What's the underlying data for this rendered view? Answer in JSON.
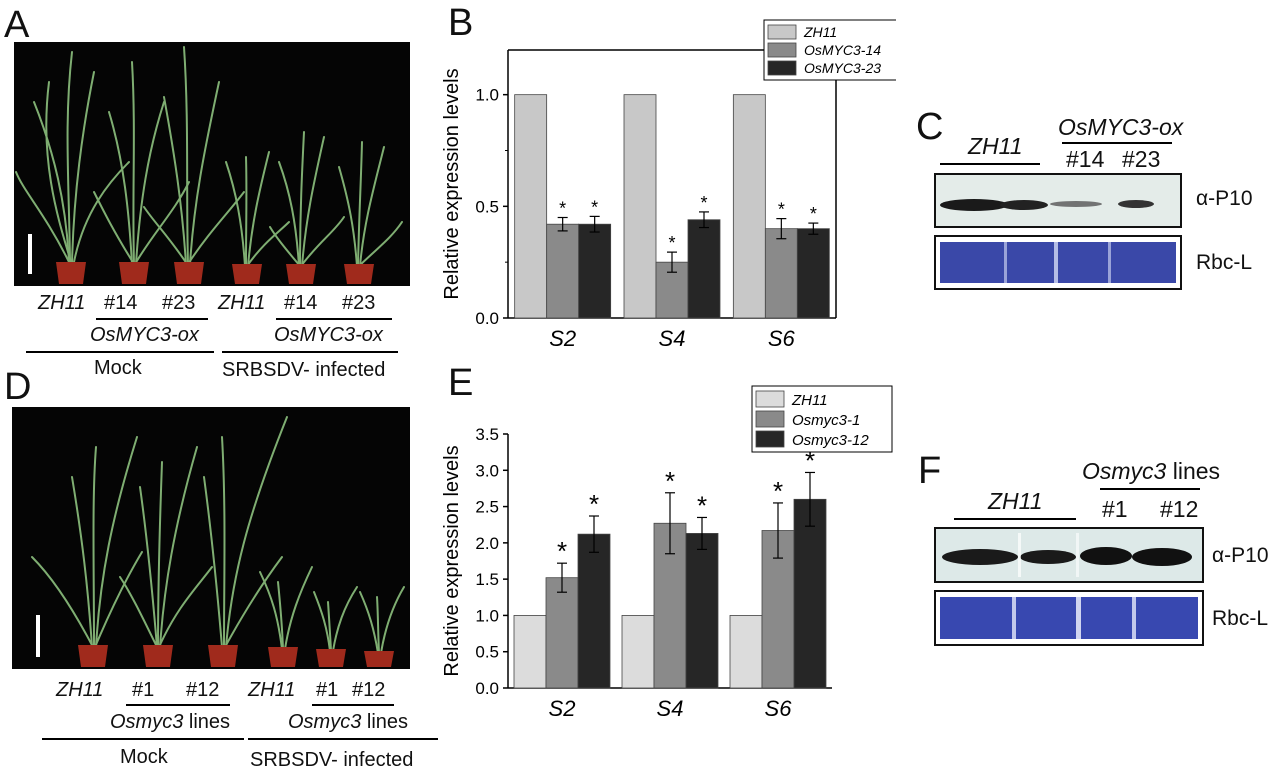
{
  "panels": {
    "a": {
      "letter": "A",
      "groups": [
        {
          "label": "ZH11",
          "lines": [
            "#14",
            "#23"
          ],
          "line_group_label": "OsMYC3-ox",
          "condition": "Mock"
        },
        {
          "label": "ZH11",
          "lines": [
            "#14",
            "#23"
          ],
          "line_group_label": "OsMYC3-ox",
          "condition": "SRBSDV- infected"
        }
      ]
    },
    "b": {
      "letter": "B"
    },
    "c": {
      "letter": "C",
      "header_left": "ZH11",
      "header_right": "OsMYC3-ox",
      "lane_labels": [
        "#14",
        "#23"
      ],
      "rows": [
        "α-P10",
        "Rbc-L"
      ]
    },
    "d": {
      "letter": "D",
      "groups": [
        {
          "label": "ZH11",
          "lines": [
            "#1",
            "#12"
          ],
          "line_group_italic": "Osmyc3",
          "line_group_rest": " lines",
          "condition": "Mock"
        },
        {
          "label": "ZH11",
          "lines": [
            "#1",
            "#12"
          ],
          "line_group_italic": "Osmyc3",
          "line_group_rest": " lines",
          "condition": "SRBSDV- infected"
        }
      ]
    },
    "e": {
      "letter": "E"
    },
    "f": {
      "letter": "F",
      "header_left": "ZH11",
      "header_right_italic": "Osmyc3",
      "header_right_rest": " lines",
      "lane_labels": [
        "#1",
        "#12"
      ],
      "rows": [
        "α-P10",
        "Rbc-L"
      ]
    }
  },
  "chart_data": [
    {
      "id": "B",
      "type": "bar",
      "ylabel": "Relative expression levels",
      "categories": [
        "S2",
        "S4",
        "S6"
      ],
      "ylim": [
        0,
        1.2
      ],
      "yticks": [
        "0.0",
        "0.5",
        "1.0"
      ],
      "yticks_values": [
        0,
        0.5,
        1.0
      ],
      "series": [
        {
          "name": "ZH11",
          "color": "#c8c8c8",
          "values": [
            1.0,
            1.0,
            1.0
          ],
          "errors": [
            0,
            0,
            0
          ],
          "sig": [
            false,
            false,
            false
          ]
        },
        {
          "name": "OsMYC3-14",
          "color": "#8a8a8a",
          "values": [
            0.42,
            0.25,
            0.4
          ],
          "errors": [
            0.03,
            0.045,
            0.045
          ],
          "sig": [
            true,
            true,
            true
          ]
        },
        {
          "name": "OsMYC3-23",
          "color": "#262626",
          "values": [
            0.42,
            0.44,
            0.4
          ],
          "errors": [
            0.035,
            0.035,
            0.025
          ],
          "sig": [
            true,
            true,
            true
          ]
        }
      ],
      "significance_marker": "*",
      "legend": "top-right"
    },
    {
      "id": "E",
      "type": "bar",
      "ylabel": "Relative expression levels",
      "categories": [
        "S2",
        "S4",
        "S6"
      ],
      "ylim": [
        0,
        3.5
      ],
      "yticks": [
        "0.0",
        "0.5",
        "1.0",
        "1.5",
        "2.0",
        "2.5",
        "3.0",
        "3.5"
      ],
      "yticks_values": [
        0,
        0.5,
        1.0,
        1.5,
        2.0,
        2.5,
        3.0,
        3.5
      ],
      "series": [
        {
          "name": "ZH11",
          "color": "#dcdcdc",
          "values": [
            1.0,
            1.0,
            1.0
          ],
          "errors": [
            0,
            0,
            0
          ],
          "sig": [
            false,
            false,
            false
          ]
        },
        {
          "name": "Osmyc3-1",
          "color": "#8a8a8a",
          "values": [
            1.52,
            2.27,
            2.17
          ],
          "errors": [
            0.2,
            0.42,
            0.38
          ],
          "sig": [
            true,
            true,
            true
          ]
        },
        {
          "name": "Osmyc3-12",
          "color": "#262626",
          "values": [
            2.12,
            2.13,
            2.6
          ],
          "errors": [
            0.25,
            0.22,
            0.37
          ],
          "sig": [
            true,
            true,
            true
          ]
        }
      ],
      "significance_marker": "*",
      "legend": "top-right"
    }
  ]
}
